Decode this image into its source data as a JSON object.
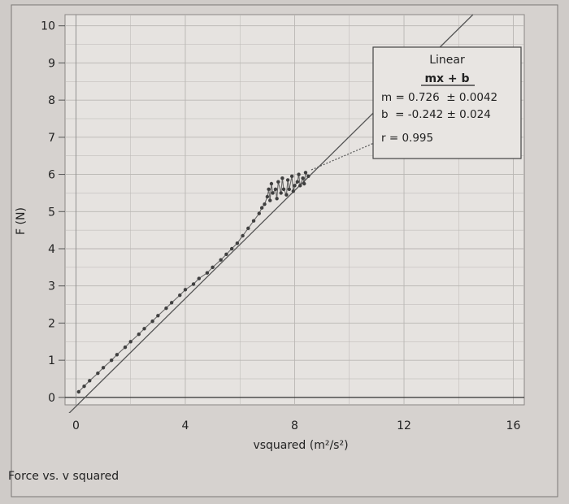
{
  "caption": "Force vs. v squared",
  "chart_data": {
    "type": "scatter",
    "title": "",
    "xlabel": "vsquared (m²/s²)",
    "ylabel": "F (N)",
    "xlim": [
      -0.4,
      16.4
    ],
    "ylim": [
      -0.2,
      10.3
    ],
    "x_ticks": [
      0,
      4,
      8,
      12,
      16
    ],
    "y_ticks": [
      0,
      1,
      2,
      3,
      4,
      5,
      6,
      7,
      8,
      9,
      10
    ],
    "grid": true,
    "colors": {
      "background": "#e6e3e0",
      "data": "#3f3f3f",
      "fit": "#555555",
      "grid": "#b9b6b3"
    },
    "series": [
      {
        "x": [
          0.1,
          0.3,
          0.5,
          0.8,
          1.0,
          1.3,
          1.5,
          1.8,
          2.0,
          2.3,
          2.5,
          2.8,
          3.0,
          3.3,
          3.5,
          3.8,
          4.0,
          4.3,
          4.5,
          4.8,
          5.0,
          5.3,
          5.5,
          5.7,
          5.9,
          6.1,
          6.3,
          6.5,
          6.7,
          6.8,
          6.9,
          7.0,
          7.05,
          7.1,
          7.15,
          7.2,
          7.3,
          7.35,
          7.4,
          7.5,
          7.55,
          7.6,
          7.7,
          7.75,
          7.8,
          7.9,
          7.95,
          8.0,
          8.1,
          8.15,
          8.2,
          8.3,
          8.35,
          8.4,
          8.5
        ],
        "y": [
          0.15,
          0.3,
          0.45,
          0.65,
          0.8,
          1.0,
          1.15,
          1.35,
          1.5,
          1.7,
          1.85,
          2.05,
          2.2,
          2.4,
          2.55,
          2.75,
          2.9,
          3.05,
          3.2,
          3.35,
          3.5,
          3.7,
          3.85,
          4.0,
          4.15,
          4.35,
          4.55,
          4.75,
          4.95,
          5.1,
          5.2,
          5.4,
          5.6,
          5.3,
          5.75,
          5.5,
          5.6,
          5.35,
          5.8,
          5.5,
          5.9,
          5.6,
          5.45,
          5.85,
          5.6,
          5.95,
          5.55,
          5.7,
          5.8,
          6.0,
          5.7,
          5.9,
          5.75,
          6.05,
          5.95
        ]
      }
    ],
    "fit": {
      "label": "Linear",
      "equation": "mx + b",
      "m_text": "m = 0.726  ± 0.0042",
      "b_text": "b  = -0.242 ± 0.024",
      "r_text": "r = 0.995",
      "m": 0.726,
      "b": -0.242
    }
  }
}
